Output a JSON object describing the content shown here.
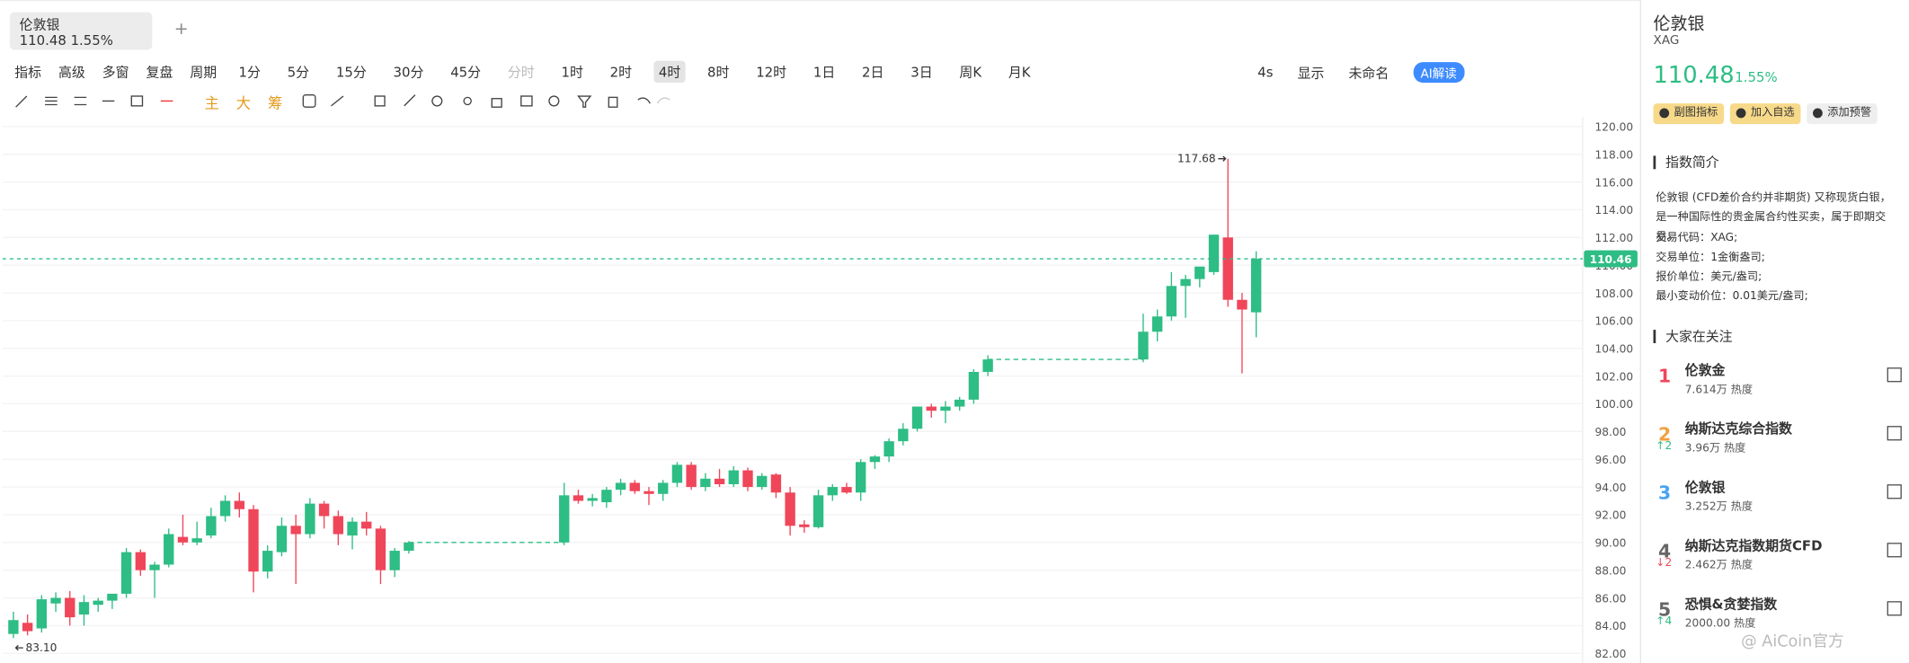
{
  "tab": {
    "name": "伦敦银",
    "price": 110.48,
    "change": "1.55%",
    "add": "+"
  },
  "toolbar": {
    "left": [
      "指标",
      "高级",
      "多窗",
      "复盘",
      "周期"
    ],
    "periods": [
      "1分",
      "5分",
      "15分",
      "30分",
      "45分",
      "分时",
      "1时",
      "2时",
      "4时",
      "8时",
      "12时",
      "1日",
      "2日",
      "3日",
      "周K",
      "月K"
    ],
    "right": [
      "4s",
      "显示",
      "未命名",
      "AI解读"
    ]
  },
  "chart_tools": [
    "主",
    "大",
    "筹"
  ],
  "chart": {
    "type": "candlestick",
    "ylim": [
      81.2,
      120.7
    ],
    "yticks": [
      {
        "value": 120,
        "label": "120.00"
      },
      {
        "value": 118,
        "label": "118.00"
      },
      {
        "value": 116,
        "label": "116.00"
      },
      {
        "value": 114,
        "label": "114.00"
      },
      {
        "value": 112,
        "label": "112.00"
      },
      {
        "value": 110,
        "label": "110.00"
      },
      {
        "value": 108,
        "label": "108.00"
      },
      {
        "value": 106,
        "label": "106.00"
      },
      {
        "value": 104,
        "label": "104.00"
      },
      {
        "value": 102,
        "label": "102.00"
      },
      {
        "value": 100,
        "label": "100.00"
      },
      {
        "value": 98,
        "label": "98.00"
      },
      {
        "value": 96,
        "label": "96.00"
      },
      {
        "value": 94,
        "label": "94.00"
      },
      {
        "value": 92,
        "label": "92.00"
      },
      {
        "value": 90,
        "label": "90.00"
      },
      {
        "value": 88,
        "label": "88.00"
      },
      {
        "value": 86,
        "label": "86.00"
      },
      {
        "value": 84,
        "label": "84.00"
      },
      {
        "value": 82,
        "label": "82.00"
      }
    ],
    "candles": [
      [
        83.4,
        85.0,
        83.1,
        84.4
      ],
      [
        84.2,
        84.8,
        83.3,
        83.6
      ],
      [
        83.8,
        86.2,
        83.5,
        85.9
      ],
      [
        85.6,
        86.4,
        85.0,
        86.0
      ],
      [
        86.0,
        86.5,
        84.0,
        84.6
      ],
      [
        84.8,
        86.2,
        84.0,
        85.7
      ],
      [
        85.5,
        86.0,
        85.0,
        85.8
      ],
      [
        85.8,
        86.3,
        85.2,
        86.3
      ],
      [
        86.3,
        89.6,
        86.0,
        89.3
      ],
      [
        89.3,
        89.5,
        87.6,
        88.0
      ],
      [
        88.0,
        88.6,
        86.0,
        88.4
      ],
      [
        88.4,
        91.0,
        88.2,
        90.6
      ],
      [
        90.4,
        92.0,
        89.8,
        90.0
      ],
      [
        90.0,
        91.5,
        89.8,
        90.3
      ],
      [
        90.5,
        92.5,
        90.3,
        91.9
      ],
      [
        91.9,
        93.4,
        91.5,
        93.0
      ],
      [
        93.0,
        93.6,
        91.8,
        92.4
      ],
      [
        92.4,
        92.7,
        86.4,
        87.9
      ],
      [
        87.9,
        89.8,
        87.4,
        89.4
      ],
      [
        89.3,
        91.8,
        89.0,
        91.2
      ],
      [
        91.2,
        92.0,
        87.0,
        90.6
      ],
      [
        90.6,
        93.2,
        90.3,
        92.8
      ],
      [
        92.8,
        93.0,
        91.0,
        91.9
      ],
      [
        91.9,
        92.3,
        89.8,
        90.6
      ],
      [
        90.5,
        91.8,
        89.5,
        91.5
      ],
      [
        91.5,
        92.2,
        90.5,
        91.0
      ],
      [
        91.0,
        91.2,
        87.0,
        88.0
      ],
      [
        88.0,
        89.6,
        87.5,
        89.4
      ],
      [
        89.4,
        90.1,
        89.2,
        90.0
      ],
      null,
      null,
      null,
      null,
      null,
      null,
      null,
      null,
      null,
      null,
      [
        90.0,
        94.3,
        89.8,
        93.4
      ],
      [
        93.4,
        93.8,
        92.8,
        93.0
      ],
      [
        93.0,
        93.5,
        92.6,
        93.2
      ],
      [
        92.9,
        94.0,
        92.5,
        93.8
      ],
      [
        93.8,
        94.6,
        93.4,
        94.3
      ],
      [
        94.3,
        94.5,
        93.5,
        93.7
      ],
      [
        93.7,
        94.0,
        92.7,
        93.5
      ],
      [
        93.5,
        94.5,
        93.0,
        94.3
      ],
      [
        94.3,
        95.8,
        94.0,
        95.6
      ],
      [
        95.6,
        95.8,
        93.8,
        94.0
      ],
      [
        94.0,
        95.0,
        93.7,
        94.6
      ],
      [
        94.6,
        95.3,
        94.0,
        94.2
      ],
      [
        94.2,
        95.5,
        94.0,
        95.2
      ],
      [
        95.2,
        95.4,
        93.7,
        94.0
      ],
      [
        94.0,
        95.0,
        93.8,
        94.8
      ],
      [
        94.9,
        95.0,
        93.2,
        93.6
      ],
      [
        93.6,
        94.0,
        90.5,
        91.2
      ],
      [
        91.3,
        91.6,
        90.7,
        91.1
      ],
      [
        91.1,
        93.8,
        91.0,
        93.4
      ],
      [
        93.4,
        94.2,
        93.0,
        94.0
      ],
      [
        94.0,
        94.3,
        93.5,
        93.6
      ],
      [
        93.6,
        96.0,
        93.0,
        95.8
      ],
      [
        95.8,
        96.3,
        95.3,
        96.2
      ],
      [
        96.2,
        97.5,
        95.8,
        97.3
      ],
      [
        97.3,
        98.6,
        97.0,
        98.2
      ],
      [
        98.2,
        99.8,
        98.0,
        99.8
      ],
      [
        99.8,
        100.0,
        99.0,
        99.5
      ],
      [
        99.5,
        100.2,
        98.6,
        99.8
      ],
      [
        99.8,
        100.5,
        99.5,
        100.3
      ],
      [
        100.3,
        102.5,
        100.0,
        102.3
      ],
      [
        102.3,
        103.5,
        102.0,
        103.2
      ],
      null,
      null,
      null,
      null,
      null,
      null,
      null,
      null,
      null,
      null,
      [
        103.2,
        106.5,
        103.0,
        105.2
      ],
      [
        105.2,
        106.8,
        104.5,
        106.3
      ],
      [
        106.3,
        109.5,
        106.0,
        108.5
      ],
      [
        108.5,
        109.3,
        106.2,
        109.0
      ],
      [
        109.0,
        109.8,
        108.4,
        109.9
      ],
      [
        109.5,
        112.2,
        109.3,
        112.2
      ],
      [
        112.0,
        117.68,
        107.0,
        107.5
      ],
      [
        107.5,
        108.0,
        102.2,
        106.8
      ],
      [
        106.6,
        111.0,
        104.8,
        110.46
      ]
    ],
    "up_color": "#2ebd85",
    "down_color": "#f0465a",
    "last_price": 110.46,
    "high_label": 117.68,
    "low_label": {
      "value": 83.1,
      "label": "83.10"
    }
  },
  "panel": {
    "title": "伦敦银",
    "symbol": "XAG",
    "price": 110.48,
    "change": "1.55%",
    "buttons": [
      "副图指标",
      "加入自选",
      "添加预警"
    ],
    "intro_title": "指数简介",
    "intro": "伦敦银 (CFD差价合约并非期货) 又称现货白银，是一种国际性的贵金属合约性买卖，属于即期交易。",
    "details": [
      "交易代码：XAG;",
      "交易单位：1金衡盎司;",
      "报价单位：美元/盎司;",
      "最小变动价位：0.01美元/盎司;"
    ],
    "watch_title": "大家在关注",
    "watch": [
      {
        "rank": 1,
        "name": "伦敦金",
        "heat": "7.614万 热度"
      },
      {
        "rank": 2,
        "name": "纳斯达克综合指数",
        "heat": "3.96万 热度",
        "move": "↑2"
      },
      {
        "rank": 3,
        "name": "伦敦银",
        "heat": "3.252万 热度"
      },
      {
        "rank": 4,
        "name": "纳斯达克指数期货CFD",
        "heat": "2.462万 热度",
        "move": "↓2"
      },
      {
        "rank": 5,
        "name": "恐惧&贪婪指数",
        "heat": "2000.00 热度",
        "move": "↑4"
      }
    ],
    "watermark": "@ AiCoin官方"
  }
}
